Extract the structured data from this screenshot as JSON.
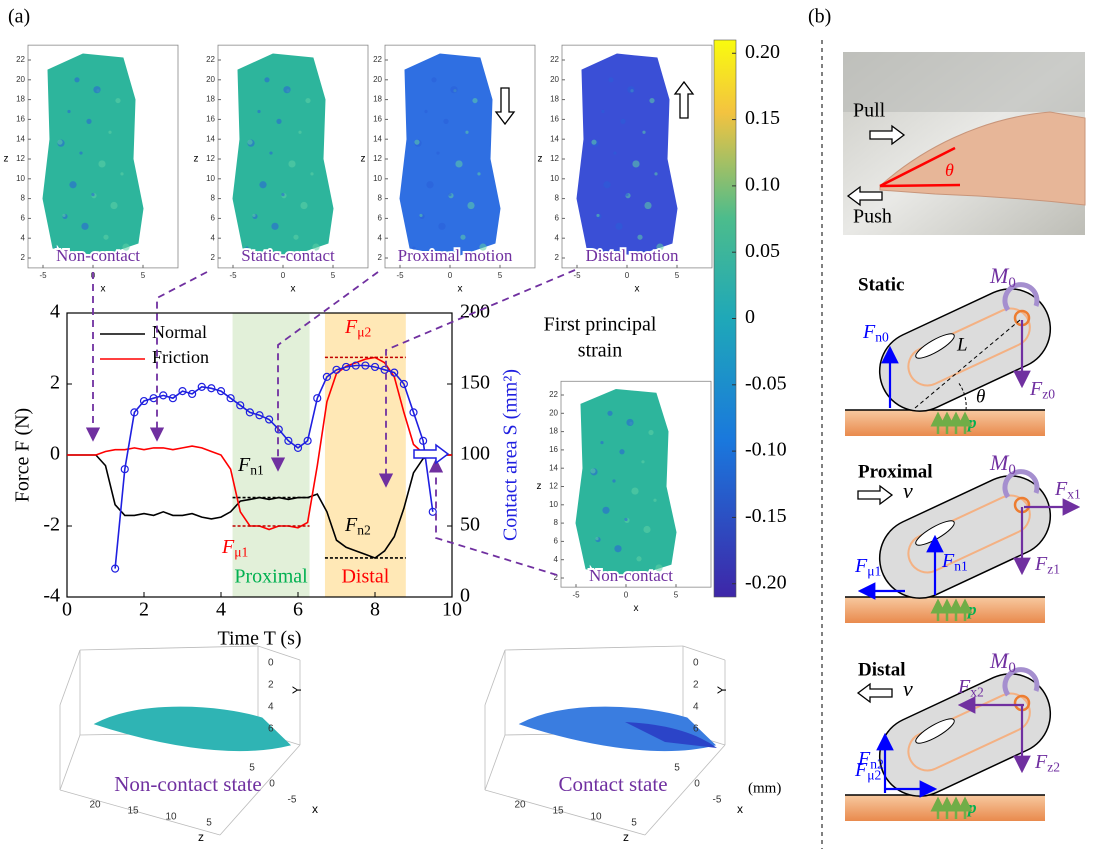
{
  "panel_a": {
    "label": "(a)"
  },
  "panel_b": {
    "label": "(b)"
  },
  "strain_maps": {
    "xlabel": "x",
    "ylabel": "z",
    "xticks": [
      -5,
      0,
      5
    ],
    "zticks": [
      2,
      4,
      6,
      8,
      10,
      12,
      14,
      16,
      18,
      20,
      22
    ],
    "maps": [
      {
        "label": "Non-contact",
        "color": "#2db59c"
      },
      {
        "label": "Static-contact",
        "color": "#2db59c"
      },
      {
        "label": "Proximal motion",
        "color": "#2f6fe2"
      },
      {
        "label": "Distal motion",
        "color": "#3a4fd6"
      },
      {
        "label": "Non-contact",
        "color": "#2db59c"
      }
    ],
    "colorbar": {
      "title_lines": [
        "First principal",
        "strain"
      ],
      "clim": [
        -0.21,
        0.21
      ],
      "ticks": [
        {
          "value": 0.2,
          "label": "0.20"
        },
        0.15,
        {
          "value": 0.1,
          "label": "0.10"
        },
        0.05,
        0,
        -0.05,
        {
          "value": -0.1,
          "label": "-0.10"
        },
        -0.15,
        {
          "value": -0.2,
          "label": "-0.20"
        }
      ]
    }
  },
  "chart_data": {
    "type": "line",
    "xlabel": "Time T (s)",
    "ylabel": "Force F (N)",
    "y2label": "Contact area S (mm²)",
    "x": [
      0,
      0.25,
      0.5,
      0.75,
      1,
      1.25,
      1.5,
      1.75,
      2,
      2.25,
      2.5,
      2.75,
      3,
      3.25,
      3.5,
      3.75,
      4,
      4.25,
      4.5,
      4.75,
      5,
      5.25,
      5.5,
      5.75,
      6,
      6.25,
      6.5,
      6.75,
      7,
      7.25,
      7.5,
      7.75,
      8,
      8.25,
      8.5,
      8.75,
      9,
      9.25,
      9.5,
      9.75,
      10
    ],
    "xlim": [
      0,
      10
    ],
    "ylim": [
      -4,
      4
    ],
    "y2lim": [
      0,
      200
    ],
    "xticks": [
      0,
      2,
      4,
      6,
      8,
      10
    ],
    "yticks": [
      -4,
      -2,
      0,
      2,
      4
    ],
    "y2ticks": [
      0,
      50,
      100,
      150,
      200
    ],
    "series": [
      {
        "name": "Normal",
        "color": "#000000",
        "values": [
          0,
          0,
          0,
          0,
          -0.3,
          -1.4,
          -1.7,
          -1.7,
          -1.65,
          -1.7,
          -1.6,
          -1.7,
          -1.7,
          -1.65,
          -1.75,
          -1.8,
          -1.75,
          -1.6,
          -1.3,
          -1.25,
          -1.2,
          -1.25,
          -1.2,
          -1.25,
          -1.2,
          -1.2,
          -1.1,
          -1.6,
          -2.4,
          -2.6,
          -2.7,
          -2.8,
          -2.9,
          -2.7,
          -2.3,
          -1.5,
          -0.5,
          -0.1,
          0,
          0,
          0
        ]
      },
      {
        "name": "Friction",
        "color": "#ff0000",
        "values": [
          0,
          0,
          0,
          0,
          0.1,
          0.15,
          0.15,
          0.2,
          0.15,
          0.2,
          0.2,
          0.15,
          0.2,
          0.25,
          0.2,
          0.1,
          0,
          -0.4,
          -1.6,
          -2,
          -2,
          -2.1,
          -2,
          -2,
          -2.05,
          -1.9,
          -0.3,
          1.5,
          2.3,
          2.5,
          2.6,
          2.7,
          2.75,
          2.6,
          2.2,
          1.2,
          0.3,
          0.05,
          0,
          0,
          0
        ]
      },
      {
        "color": "#1f1fe0",
        "axis": "y2",
        "marker": "circle",
        "values": [
          null,
          null,
          null,
          null,
          null,
          20,
          90,
          130,
          138,
          140,
          142,
          140,
          145,
          143,
          148,
          147,
          145,
          140,
          135,
          130,
          128,
          125,
          118,
          110,
          105,
          110,
          140,
          155,
          160,
          162,
          163,
          163,
          162,
          160,
          158,
          150,
          130,
          110,
          60,
          null,
          null
        ]
      }
    ],
    "regions": [
      {
        "label": "Proximal",
        "x": [
          4.3,
          6.3
        ],
        "color": "#e2f0d9",
        "label_color": "#00b050"
      },
      {
        "label": "Distal",
        "x": [
          6.7,
          8.8
        ],
        "color": "#ffe8b6",
        "label_color": "#ff0000"
      }
    ],
    "annotations": [
      {
        "main": "F",
        "sub": "n1",
        "color": "#000000"
      },
      {
        "main": "F",
        "sub": "μ1",
        "color": "#ff0000"
      },
      {
        "main": "F",
        "sub": "μ2",
        "color": "#ff0000"
      },
      {
        "main": "F",
        "sub": "n2",
        "color": "#000000"
      }
    ]
  },
  "surface_plots": {
    "zticks": [
      20,
      15,
      10,
      5
    ],
    "xticks": [
      5,
      0,
      -5
    ],
    "yticks": [
      0,
      2,
      4,
      6
    ],
    "zlabel": "z",
    "xlabel": "x",
    "ylabel": "Y",
    "unit": "(mm)",
    "plots": [
      {
        "label": "Non-contact state"
      },
      {
        "label": "Contact state"
      }
    ]
  },
  "photo": {
    "pull": "Pull",
    "push": "Push",
    "angle": "θ"
  },
  "diagrams": {
    "static": {
      "title": "Static",
      "moment": {
        "main": "M",
        "sub": "0"
      },
      "fn": {
        "main": "F",
        "sub": "n0"
      },
      "fz": {
        "main": "F",
        "sub": "z0"
      },
      "length": "L",
      "angle": "θ",
      "pressure": "p"
    },
    "proximal": {
      "title": "Proximal",
      "velocity": "v",
      "moment": {
        "main": "M",
        "sub": "0"
      },
      "fx": {
        "main": "F",
        "sub": "x1"
      },
      "fmu": {
        "main": "F",
        "sub": "μ1"
      },
      "fn": {
        "main": "F",
        "sub": "n1"
      },
      "fz": {
        "main": "F",
        "sub": "z1"
      },
      "pressure": "p"
    },
    "distal": {
      "title": "Distal",
      "velocity": "v",
      "moment": {
        "main": "M",
        "sub": "0"
      },
      "fx": {
        "main": "F",
        "sub": "x2"
      },
      "fmu": {
        "main": "F",
        "sub": "μ2"
      },
      "fn": {
        "main": "F",
        "sub": "n2"
      },
      "fz": {
        "main": "F",
        "sub": "z2"
      },
      "pressure": "p"
    }
  }
}
